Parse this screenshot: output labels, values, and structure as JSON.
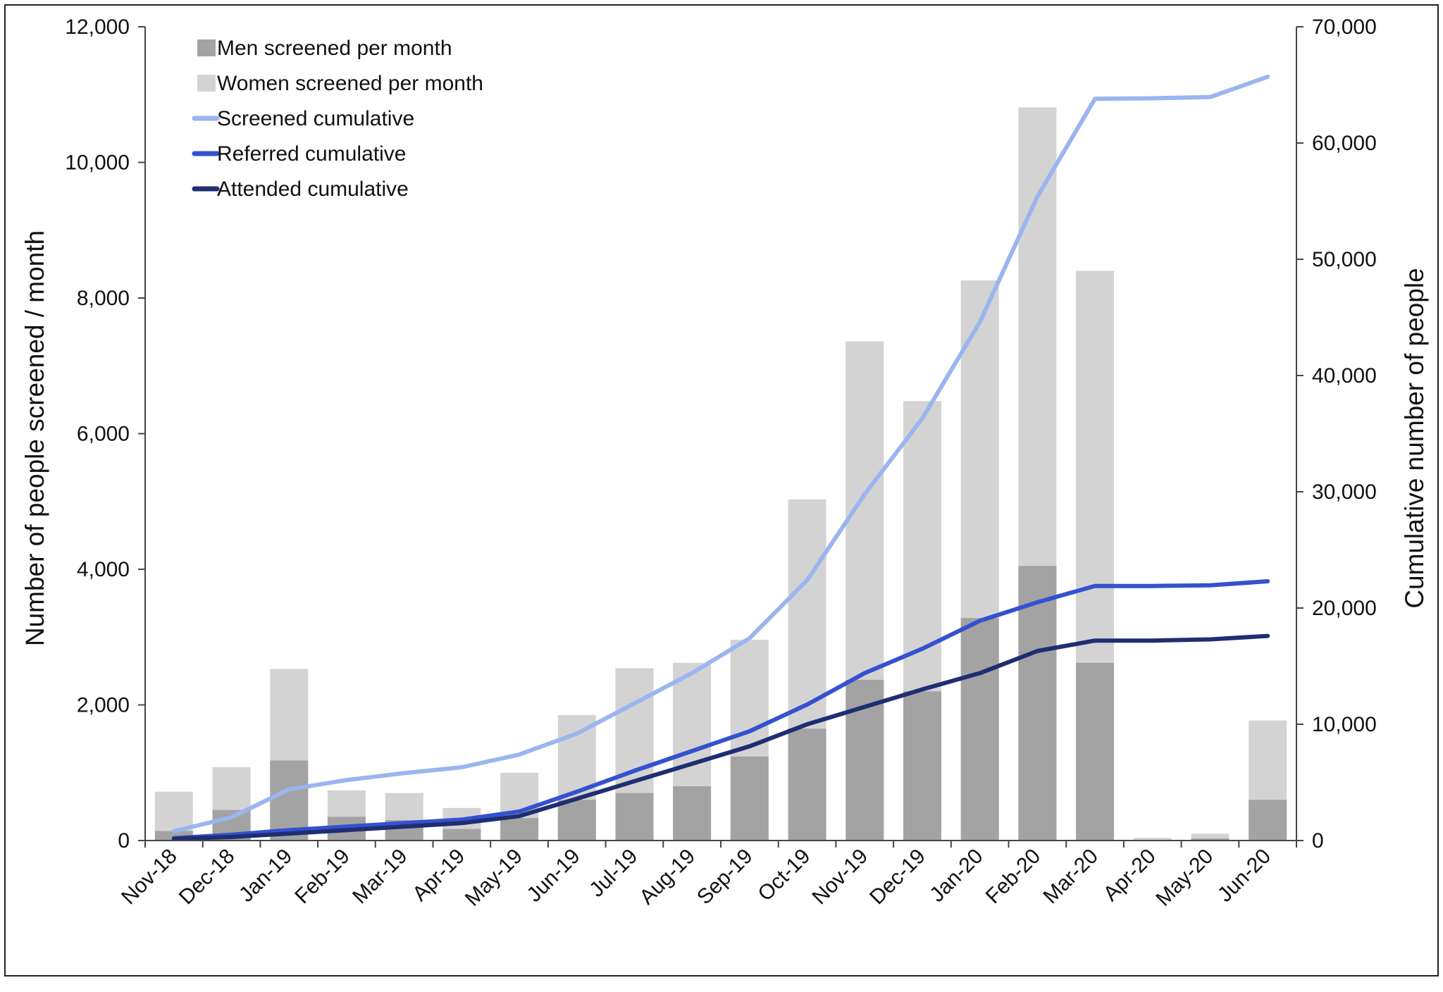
{
  "chart_data": {
    "type": "bar",
    "categories": [
      "Nov-18",
      "Dec-18",
      "Jan-19",
      "Feb-19",
      "Mar-19",
      "Apr-19",
      "May-19",
      "Jun-19",
      "Jul-19",
      "Aug-19",
      "Sep-19",
      "Oct-19",
      "Nov-19",
      "Dec-19",
      "Jan-20",
      "Feb-20",
      "Mar-20",
      "Apr-20",
      "May-20",
      "Jun-20"
    ],
    "bar_mode": "overlap",
    "bar_series": [
      {
        "name": "Women screened per month",
        "color": "#d3d3d3",
        "values": [
          720,
          1080,
          2530,
          740,
          700,
          480,
          1000,
          1850,
          2540,
          2620,
          2960,
          5030,
          7360,
          6480,
          8260,
          10810,
          8400,
          40,
          100,
          1770
        ]
      },
      {
        "name": "Men screened per month",
        "color": "#a3a3a3",
        "values": [
          140,
          450,
          1180,
          350,
          300,
          170,
          330,
          600,
          700,
          800,
          1240,
          1650,
          2370,
          2200,
          3280,
          4050,
          2620,
          10,
          30,
          600
        ]
      }
    ],
    "line_series": [
      {
        "name": "Screened cumulative",
        "color": "#9ab5ef",
        "axis": "right",
        "values": [
          800,
          2000,
          4400,
          5200,
          5800,
          6300,
          7400,
          9200,
          11800,
          14400,
          17400,
          22400,
          29800,
          36300,
          44600,
          55400,
          63800,
          63850,
          63950,
          65700
        ]
      },
      {
        "name": "Referred cumulative",
        "color": "#3451cf",
        "axis": "right",
        "values": [
          200,
          500,
          900,
          1200,
          1500,
          1800,
          2500,
          4200,
          6000,
          7700,
          9400,
          11700,
          14400,
          16500,
          18900,
          20500,
          21900,
          21900,
          21950,
          22300
        ]
      },
      {
        "name": "Attended cumulative",
        "color": "#1f2e72",
        "axis": "right",
        "values": [
          150,
          300,
          600,
          900,
          1200,
          1500,
          2100,
          3600,
          5100,
          6600,
          8100,
          10000,
          11500,
          13000,
          14400,
          16300,
          17200,
          17200,
          17300,
          17600
        ]
      }
    ],
    "ylabel_left": "Number of people screened / month",
    "ylabel_right": "Cumulative number of people",
    "xlabel": "",
    "ylim_left": [
      0,
      12000
    ],
    "ylim_right": [
      0,
      70000
    ],
    "yticks_left": [
      0,
      2000,
      4000,
      6000,
      8000,
      10000,
      12000
    ],
    "yticks_left_labels": [
      "0",
      "2,000",
      "4,000",
      "6,000",
      "8,000",
      "10,000",
      "12,000"
    ],
    "yticks_right": [
      0,
      10000,
      20000,
      30000,
      40000,
      50000,
      60000,
      70000
    ],
    "yticks_right_labels": [
      "0",
      "10,000",
      "20,000",
      "30,000",
      "40,000",
      "50,000",
      "60,000",
      "70,000"
    ],
    "grid": false,
    "legend_position": "top-left",
    "legend": [
      {
        "label": "Men screened per month",
        "kind": "box",
        "color": "#a3a3a3"
      },
      {
        "label": "Women screened per month",
        "kind": "box",
        "color": "#d3d3d3"
      },
      {
        "label": "Screened cumulative",
        "kind": "line",
        "color": "#9ab5ef"
      },
      {
        "label": "Referred cumulative",
        "kind": "line",
        "color": "#3451cf"
      },
      {
        "label": "Attended cumulative",
        "kind": "line",
        "color": "#1f2e72"
      }
    ]
  }
}
